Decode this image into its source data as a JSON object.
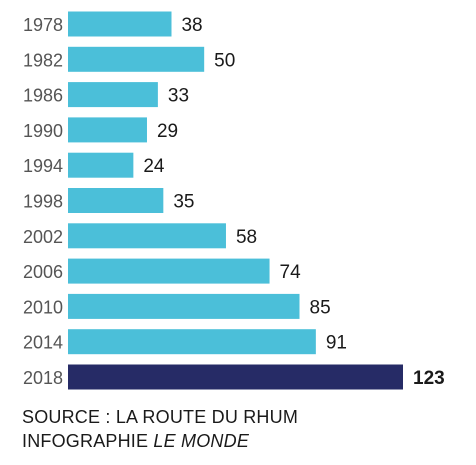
{
  "chart_data": {
    "type": "bar",
    "orientation": "horizontal",
    "categories": [
      "1978",
      "1982",
      "1986",
      "1990",
      "1994",
      "1998",
      "2002",
      "2006",
      "2010",
      "2014",
      "2018"
    ],
    "values": [
      38,
      50,
      33,
      29,
      24,
      35,
      58,
      74,
      85,
      91,
      123
    ],
    "highlight_index": 10,
    "title": "",
    "xlabel": "",
    "ylabel": "",
    "xlim": [
      0,
      123
    ],
    "grid": false,
    "legend": "none",
    "colors": {
      "bar": "#4bbfd9",
      "highlight": "#262b66",
      "label": "#1a1a1a"
    }
  },
  "source": {
    "line1": "SOURCE : LA ROUTE DU RHUM",
    "line2_prefix": "INFOGRAPHIE ",
    "line2_italic": "LE MONDE"
  }
}
